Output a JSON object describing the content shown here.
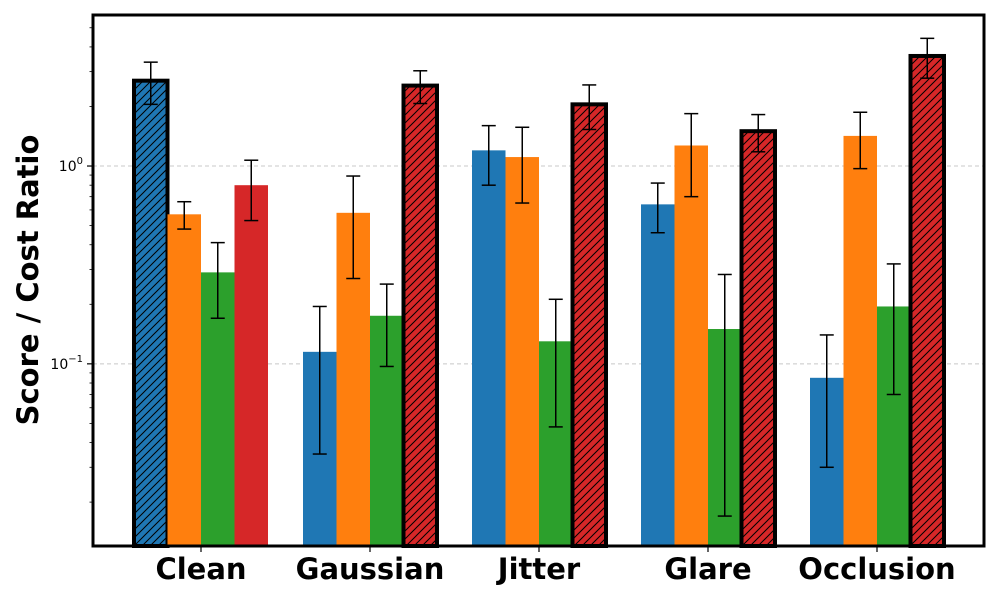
{
  "chart_data": {
    "type": "bar",
    "title": "",
    "xlabel": "",
    "ylabel": "Score / Cost Ratio",
    "yscale": "log",
    "ylim": [
      0.012,
      5.8
    ],
    "grid": "horizontal dashed at major y ticks",
    "legend": "none",
    "categories": [
      "Clean",
      "Gaussian",
      "Jitter",
      "Glare",
      "Occlusion"
    ],
    "yticks": [
      {
        "value": 0.1,
        "label_base": "10",
        "label_exp": "−1"
      },
      {
        "value": 1,
        "label_base": "10",
        "label_exp": "0"
      }
    ],
    "series": [
      {
        "color": "#1f77b4",
        "values": [
          2.7,
          0.115,
          1.2,
          0.64,
          0.085
        ],
        "errors": [
          0.65,
          0.08,
          0.4,
          0.18,
          0.055
        ]
      },
      {
        "color": "#ff7f0e",
        "values": [
          0.57,
          0.58,
          1.11,
          1.27,
          1.42
        ],
        "errors": [
          0.09,
          0.31,
          0.46,
          0.57,
          0.45
        ]
      },
      {
        "color": "#2ca02c",
        "values": [
          0.29,
          0.175,
          0.13,
          0.15,
          0.195
        ],
        "errors": [
          0.12,
          0.078,
          0.082,
          0.133,
          0.125
        ]
      },
      {
        "color": "#d62728",
        "values": [
          0.8,
          2.55,
          2.05,
          1.5,
          3.6
        ],
        "errors": [
          0.27,
          0.48,
          0.52,
          0.32,
          0.82
        ]
      }
    ],
    "highlighted": [
      {
        "series": 0,
        "category": 0
      },
      {
        "series": 3,
        "category": 1
      },
      {
        "series": 3,
        "category": 2
      },
      {
        "series": 3,
        "category": 3
      },
      {
        "series": 3,
        "category": 4
      }
    ]
  }
}
